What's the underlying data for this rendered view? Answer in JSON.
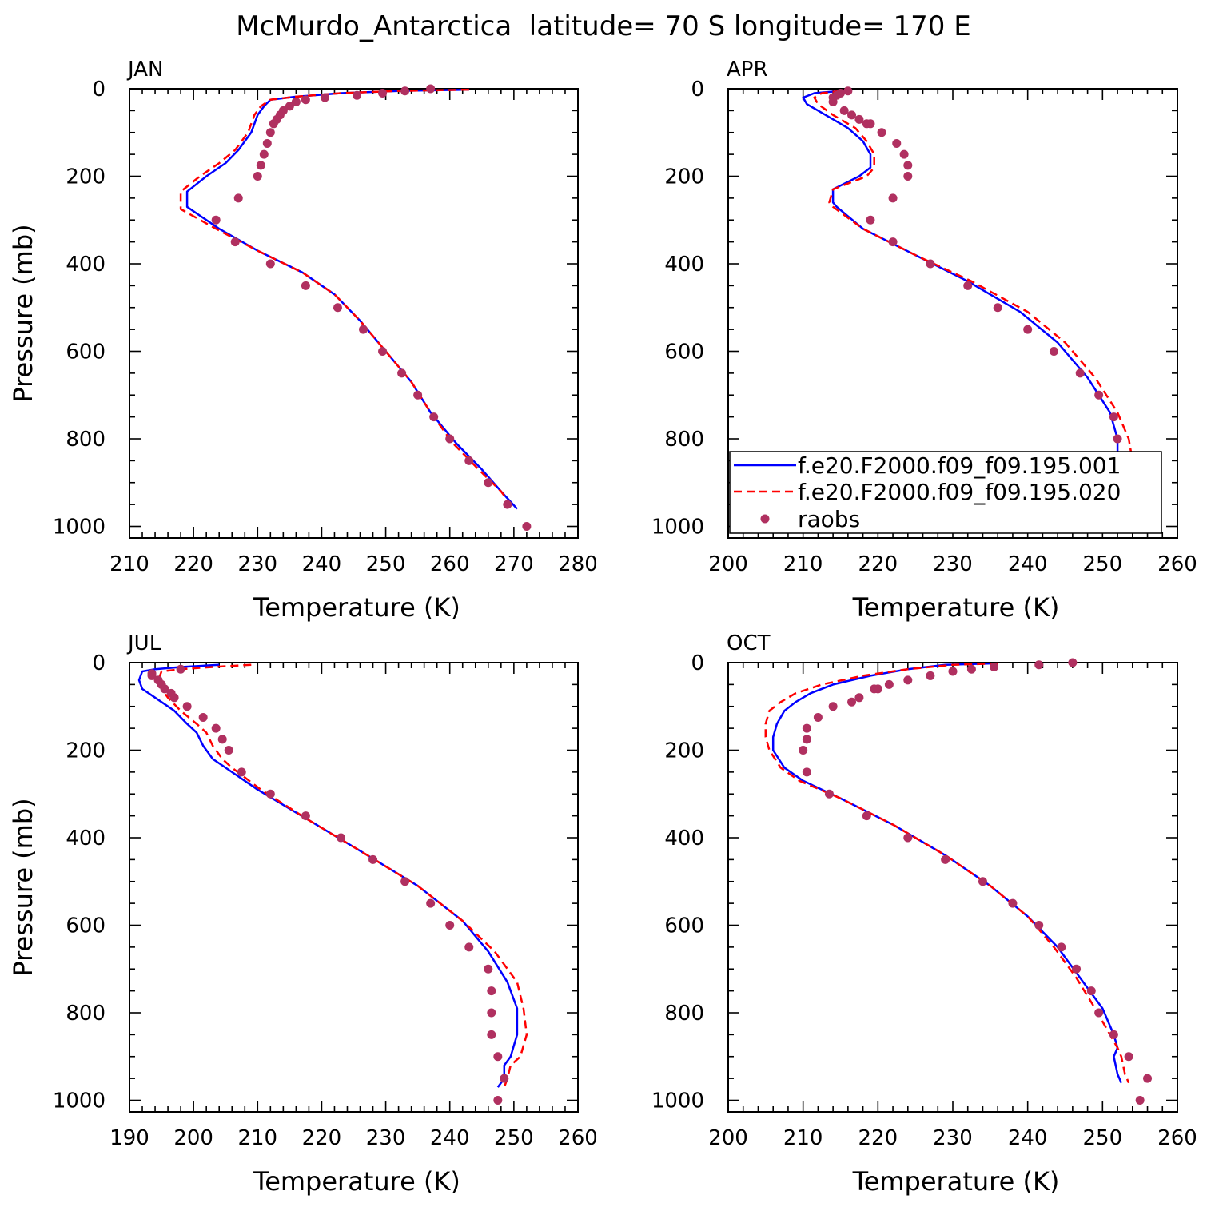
{
  "title": "McMurdo_Antarctica  latitude= 70 S longitude= 170 E",
  "colors": {
    "series_001": "#0000ff",
    "series_020": "#ff0000",
    "raobs": "#b03060"
  },
  "legend": {
    "placement": "inside APR panel, bottom-left",
    "entries": [
      "f.e20.F2000.f09_f09.195.001",
      "f.e20.F2000.f09_f09.195.020",
      "raobs"
    ]
  },
  "chart_data": [
    {
      "type": "line",
      "panel_label": "JAN",
      "xlabel": "Temperature (K)",
      "ylabel": "Pressure (mb)",
      "xlim": [
        210,
        280
      ],
      "ylim": [
        1000,
        0
      ],
      "xticks": [
        "210",
        "220",
        "230",
        "240",
        "250",
        "260",
        "270",
        "280"
      ],
      "yticks": [
        "0",
        "200",
        "400",
        "600",
        "800",
        "1000"
      ],
      "series": [
        {
          "name": "f.e20.F2000.f09_f09.195.001",
          "style": "solid",
          "x": [
            263,
            252,
            243,
            236,
            232,
            231,
            230,
            229,
            227,
            225,
            222,
            219,
            219,
            224,
            230,
            237,
            242,
            246,
            250,
            254,
            257,
            261,
            265,
            268,
            270.5
          ],
          "y": [
            2,
            5,
            10,
            18,
            25,
            40,
            60,
            100,
            140,
            170,
            200,
            235,
            270,
            320,
            370,
            420,
            470,
            530,
            600,
            670,
            740,
            810,
            870,
            920,
            960
          ]
        },
        {
          "name": "f.e20.F2000.f09_f09.195.020",
          "style": "dashed",
          "x": [
            263,
            252,
            243,
            236,
            232,
            230.5,
            229.5,
            228.5,
            226.5,
            224,
            221,
            218,
            218,
            223.5,
            230,
            237,
            242,
            246,
            250,
            254,
            257,
            260.5,
            264.5,
            268,
            270
          ],
          "y": [
            2,
            5,
            10,
            18,
            25,
            40,
            60,
            100,
            140,
            170,
            200,
            235,
            275,
            320,
            370,
            420,
            470,
            530,
            600,
            670,
            740,
            810,
            870,
            920,
            960
          ]
        },
        {
          "name": "raobs",
          "style": "points",
          "x": [
            257,
            253,
            249.5,
            245.5,
            240.5,
            237.5,
            236,
            235,
            234,
            233.5,
            233,
            232.5,
            232,
            231.5,
            231,
            230.5,
            230,
            227,
            223.5,
            226.5,
            232,
            237.5,
            242.5,
            246.5,
            249.5,
            252.5,
            255,
            257.5,
            260,
            263,
            266,
            269,
            272
          ],
          "y": [
            0,
            5,
            10,
            15,
            20,
            25,
            30,
            40,
            50,
            60,
            70,
            80,
            100,
            125,
            150,
            175,
            200,
            250,
            300,
            350,
            400,
            450,
            500,
            550,
            600,
            650,
            700,
            750,
            800,
            850,
            900,
            950,
            1000
          ]
        }
      ]
    },
    {
      "type": "line",
      "panel_label": "APR",
      "xlabel": "Temperature (K)",
      "ylabel": "",
      "xlim": [
        200,
        260
      ],
      "ylim": [
        1000,
        0
      ],
      "xticks": [
        "200",
        "210",
        "220",
        "230",
        "240",
        "250",
        "260"
      ],
      "yticks": [
        "0",
        "200",
        "400",
        "600",
        "800",
        "1000"
      ],
      "series": [
        {
          "name": "f.e20.F2000.f09_f09.195.001",
          "style": "solid",
          "x": [
            215,
            211.5,
            210,
            210.5,
            213,
            216,
            218,
            219,
            219,
            217.5,
            214,
            214,
            214.5,
            218,
            225,
            232,
            239,
            244,
            248,
            251,
            252,
            252,
            252.5,
            253.5,
            256
          ],
          "y": [
            5,
            10,
            20,
            35,
            60,
            90,
            120,
            150,
            180,
            200,
            230,
            260,
            270,
            320,
            380,
            440,
            510,
            580,
            660,
            740,
            800,
            850,
            900,
            930,
            960
          ]
        },
        {
          "name": "f.e20.F2000.f09_f09.195.020",
          "style": "dashed",
          "x": [
            215,
            212.5,
            211.5,
            212,
            214,
            217,
            218.5,
            219.5,
            219.5,
            218.5,
            214,
            213.5,
            214,
            218,
            225,
            232.5,
            240,
            245,
            249,
            252,
            253.5,
            254,
            254,
            255,
            256.5
          ],
          "y": [
            5,
            10,
            20,
            35,
            60,
            90,
            120,
            150,
            180,
            200,
            230,
            260,
            270,
            320,
            380,
            440,
            510,
            580,
            660,
            740,
            800,
            850,
            900,
            930,
            960
          ]
        },
        {
          "name": "raobs",
          "style": "points",
          "x": [
            216,
            215,
            214.5,
            214,
            214,
            215.5,
            216.5,
            217.5,
            218.5,
            219,
            220.5,
            222.5,
            223.5,
            224,
            224,
            222,
            219,
            222,
            227,
            232,
            236,
            240,
            243.5,
            247,
            249.5,
            251.5,
            252,
            253,
            254,
            255,
            256,
            256.5
          ],
          "y": [
            5,
            10,
            15,
            20,
            30,
            50,
            60,
            70,
            80,
            80,
            100,
            125,
            150,
            175,
            200,
            250,
            300,
            350,
            400,
            450,
            500,
            550,
            600,
            650,
            700,
            750,
            800,
            850,
            900,
            925,
            950,
            1000
          ]
        }
      ]
    },
    {
      "type": "line",
      "panel_label": "JUL",
      "xlabel": "Temperature (K)",
      "ylabel": "Pressure (mb)",
      "xlim": [
        190,
        260
      ],
      "ylim": [
        1000,
        0
      ],
      "xticks": [
        "190",
        "200",
        "210",
        "220",
        "230",
        "240",
        "250",
        "260"
      ],
      "yticks": [
        "0",
        "200",
        "400",
        "600",
        "800",
        "1000"
      ],
      "series": [
        {
          "name": "f.e20.F2000.f09_f09.195.001",
          "style": "solid",
          "x": [
            204,
            198,
            194,
            192,
            191.5,
            192,
            194,
            197,
            199,
            200.5,
            201.5,
            203,
            205,
            210,
            218,
            226,
            235,
            242,
            246,
            249,
            250.5,
            250.5,
            249.5,
            248.5,
            248.5,
            247.5
          ],
          "y": [
            5,
            10,
            15,
            20,
            40,
            60,
            80,
            110,
            140,
            160,
            190,
            220,
            240,
            290,
            360,
            430,
            510,
            590,
            660,
            730,
            790,
            850,
            900,
            920,
            950,
            970
          ]
        },
        {
          "name": "f.e20.F2000.f09_f09.195.020",
          "style": "dashed",
          "x": [
            209,
            203,
            198,
            195,
            194.5,
            195,
            196,
            198,
            200.5,
            202,
            203,
            204.5,
            206,
            210.5,
            218,
            226,
            235,
            242,
            247,
            250.5,
            251.5,
            252,
            251,
            249.5,
            249,
            248.5
          ],
          "y": [
            5,
            10,
            15,
            20,
            40,
            60,
            80,
            110,
            140,
            160,
            190,
            220,
            240,
            290,
            360,
            430,
            510,
            590,
            660,
            730,
            790,
            850,
            900,
            920,
            950,
            970
          ]
        },
        {
          "name": "raobs",
          "style": "points",
          "x": [
            198,
            193.5,
            193.5,
            194.5,
            195,
            195.5,
            196.5,
            197,
            199,
            201.5,
            203.5,
            204.5,
            205.5,
            207.5,
            212,
            217.5,
            223,
            228,
            233,
            237,
            240,
            243,
            246,
            246.5,
            246.5,
            246.5,
            247.5,
            248.5,
            247.5
          ],
          "y": [
            15,
            25,
            30,
            40,
            50,
            60,
            70,
            80,
            100,
            125,
            150,
            175,
            200,
            250,
            300,
            350,
            400,
            450,
            500,
            550,
            600,
            650,
            700,
            750,
            800,
            850,
            900,
            950,
            1000
          ]
        }
      ]
    },
    {
      "type": "line",
      "panel_label": "OCT",
      "xlabel": "Temperature (K)",
      "ylabel": "",
      "xlim": [
        200,
        260
      ],
      "ylim": [
        1000,
        0
      ],
      "xticks": [
        "200",
        "210",
        "220",
        "230",
        "240",
        "250",
        "260"
      ],
      "yticks": [
        "0",
        "200",
        "400",
        "600",
        "800",
        "1000"
      ],
      "series": [
        {
          "name": "f.e20.F2000.f09_f09.195.001",
          "style": "solid",
          "x": [
            235,
            229,
            224,
            219,
            214,
            211,
            209,
            207.5,
            206.5,
            206,
            206,
            207.5,
            210,
            215,
            222,
            229,
            235,
            240,
            244,
            247,
            250,
            251.5,
            252,
            251.5,
            252,
            252.5
          ],
          "y": [
            2,
            5,
            15,
            30,
            50,
            70,
            90,
            110,
            140,
            170,
            200,
            240,
            270,
            310,
            370,
            440,
            510,
            580,
            650,
            720,
            790,
            850,
            880,
            900,
            940,
            960
          ]
        },
        {
          "name": "f.e20.F2000.f09_f09.195.020",
          "style": "dashed",
          "x": [
            236,
            230,
            224,
            218,
            212.5,
            209,
            207,
            205.5,
            205,
            205,
            205.5,
            207,
            209.5,
            215,
            222,
            229,
            235,
            240,
            243.5,
            246.5,
            249,
            251,
            252,
            252.5,
            253,
            253.5
          ],
          "y": [
            2,
            5,
            15,
            30,
            50,
            70,
            90,
            110,
            140,
            170,
            200,
            240,
            270,
            310,
            370,
            440,
            510,
            580,
            650,
            720,
            790,
            850,
            880,
            900,
            940,
            960
          ]
        },
        {
          "name": "raobs",
          "style": "points",
          "x": [
            246,
            241.5,
            235.5,
            232.5,
            230,
            227,
            224,
            221.5,
            220,
            219.5,
            217.5,
            216.5,
            214,
            212,
            210.5,
            210.5,
            210,
            210.5,
            213.5,
            218.5,
            224,
            229,
            234,
            238,
            241.5,
            244.5,
            246.5,
            248.5,
            249.5,
            251.5,
            253.5,
            256,
            255
          ],
          "y": [
            0,
            5,
            10,
            15,
            20,
            30,
            40,
            50,
            60,
            60,
            80,
            90,
            100,
            125,
            150,
            175,
            200,
            250,
            300,
            350,
            400,
            450,
            500,
            550,
            600,
            650,
            700,
            750,
            800,
            850,
            900,
            950,
            1000
          ]
        }
      ]
    }
  ]
}
